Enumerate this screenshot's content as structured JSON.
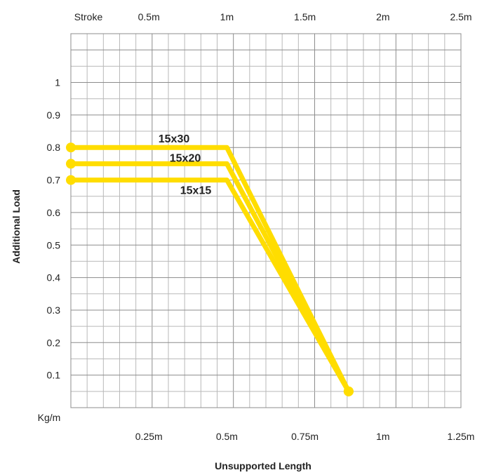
{
  "chart_data": {
    "type": "line",
    "top_axis": {
      "label": "Stroke",
      "ticks": [
        {
          "value": 0.5,
          "label": "0.5m"
        },
        {
          "value": 1.0,
          "label": "1m"
        },
        {
          "value": 1.5,
          "label": "1.5m"
        },
        {
          "value": 2.0,
          "label": "2m"
        },
        {
          "value": 2.5,
          "label": "2.5m"
        }
      ],
      "range": [
        0,
        2.5
      ]
    },
    "x_axis": {
      "label": "Unsupported Length",
      "ticks": [
        {
          "value": 0.25,
          "label": "0.25m"
        },
        {
          "value": 0.5,
          "label": "0.5m"
        },
        {
          "value": 0.75,
          "label": "0.75m"
        },
        {
          "value": 1.0,
          "label": "1m"
        },
        {
          "value": 1.25,
          "label": "1.25m"
        }
      ],
      "range": [
        0,
        1.25
      ]
    },
    "y_axis": {
      "label": "Additional Load",
      "unit_label": "Kg/m",
      "ticks": [
        {
          "value": 0.1,
          "label": "0.1"
        },
        {
          "value": 0.2,
          "label": "0.2"
        },
        {
          "value": 0.3,
          "label": "0.3"
        },
        {
          "value": 0.4,
          "label": "0.4"
        },
        {
          "value": 0.5,
          "label": "0.5"
        },
        {
          "value": 0.6,
          "label": "0.6"
        },
        {
          "value": 0.7,
          "label": "0.7"
        },
        {
          "value": 0.8,
          "label": "0.8"
        },
        {
          "value": 0.9,
          "label": "0.9"
        },
        {
          "value": 1.0,
          "label": "1"
        }
      ],
      "range": [
        0,
        1.15
      ]
    },
    "grid": true,
    "line_color": "#ffdd00",
    "series": [
      {
        "name": "15x30",
        "x": [
          0,
          0.5,
          0.89
        ],
        "y": [
          0.8,
          0.8,
          0.05
        ]
      },
      {
        "name": "15x20",
        "x": [
          0,
          0.5,
          0.89
        ],
        "y": [
          0.75,
          0.75,
          0.05
        ]
      },
      {
        "name": "15x15",
        "x": [
          0,
          0.5,
          0.89
        ],
        "y": [
          0.7,
          0.7,
          0.05
        ]
      }
    ]
  }
}
